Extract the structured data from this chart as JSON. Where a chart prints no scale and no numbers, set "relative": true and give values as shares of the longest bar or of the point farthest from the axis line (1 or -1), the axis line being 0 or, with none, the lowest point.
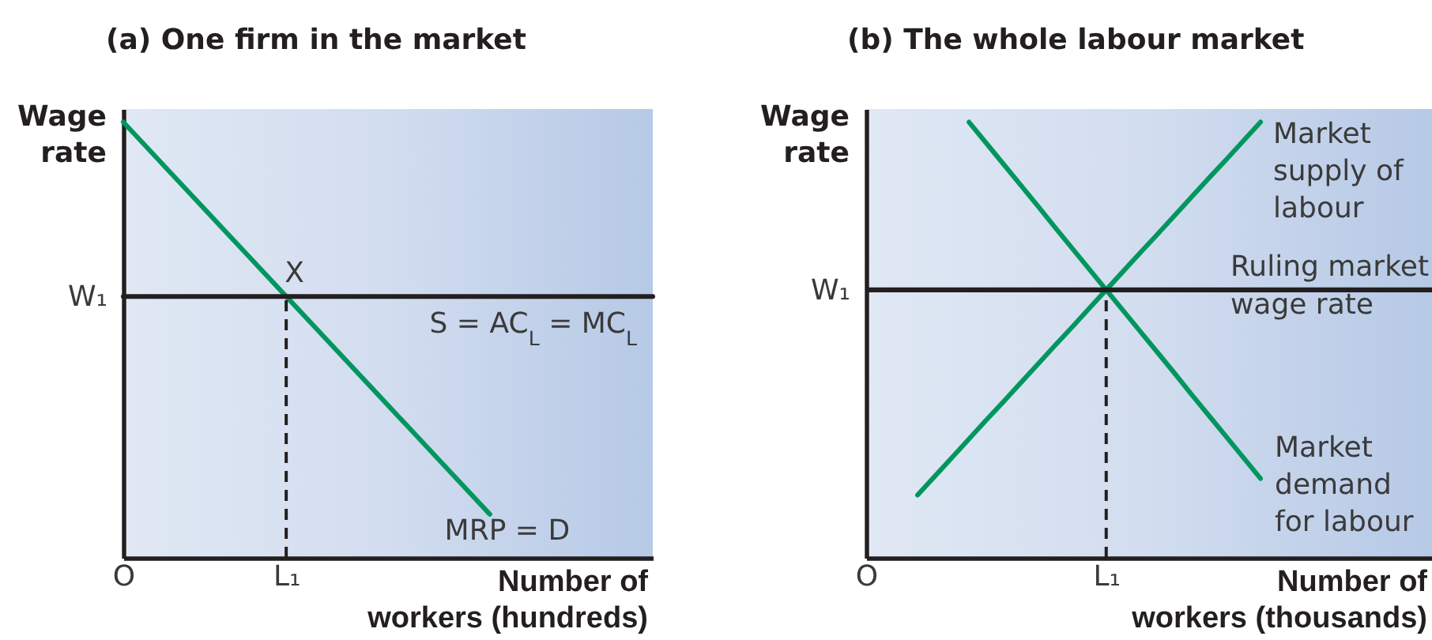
{
  "chart_data": [
    {
      "type": "line",
      "title": "(a) One firm in the market",
      "xlabel": "Number of workers (hundreds)",
      "ylabel": "Wage rate",
      "relative": true,
      "categories": [
        "O",
        null,
        null,
        null,
        "L₁",
        null,
        null,
        null,
        null,
        null,
        null,
        null,
        null,
        null
      ],
      "series": [
        {
          "name": "MRP = D",
          "color": "#00965e",
          "values": [
            1,
            0.9,
            0.8,
            0.7,
            0.6,
            0.5,
            0.4,
            0.3,
            0.2,
            0.1,
            null,
            null,
            null,
            null
          ]
        },
        {
          "name": "S = AC$_{L}$ = MC$_{L}$",
          "color": "#231f20",
          "values": [
            0.6,
            0.6,
            0.6,
            0.6,
            0.6,
            0.6,
            0.6,
            0.6,
            0.6,
            0.6,
            0.6,
            0.6,
            0.6,
            0.6
          ]
        },
        {
          "color": "#231f20",
          "line_style": "dashed",
          "x": [
            "L₁",
            "L₁"
          ],
          "values": [
            0,
            0.6
          ]
        }
      ],
      "annotations": [
        "W₁",
        {
          "text": "X",
          "x": "L₁",
          "y": 0.6
        }
      ]
    },
    {
      "type": "line",
      "title": "(b) The whole labour market",
      "xlabel": "Number of workers (thousands)",
      "ylabel": "Wage rate",
      "relative": true,
      "categories": [
        "O",
        null,
        null,
        null,
        null,
        null,
        null,
        null,
        null,
        null,
        null,
        null,
        null,
        null,
        "L₁",
        null,
        null,
        null,
        null,
        null,
        null,
        null,
        null,
        null,
        null,
        null,
        null,
        null,
        null,
        null,
        null,
        null,
        null,
        null
      ],
      "series": [
        {
          "name": "Market supply of labour",
          "color": "#00965e",
          "values": [
            null,
            null,
            null,
            0.144,
            0.187,
            0.23,
            0.273,
            0.316,
            0.358,
            0.401,
            0.444,
            0.487,
            0.529,
            0.572,
            0.615,
            0.658,
            0.701,
            0.743,
            0.786,
            0.829,
            0.872,
            0.914,
            0.957,
            1,
            null,
            null,
            null,
            null,
            null,
            null,
            null,
            null,
            null,
            null
          ]
        },
        {
          "name": "Market demand for labour",
          "color": "#00965e",
          "values": [
            null,
            null,
            null,
            null,
            null,
            null,
            1,
            0.952,
            0.904,
            0.856,
            0.808,
            0.759,
            0.711,
            0.663,
            0.615,
            0.567,
            0.519,
            0.471,
            0.423,
            0.374,
            0.326,
            0.278,
            0.23,
            0.182,
            null,
            null,
            null,
            null,
            null,
            null,
            null,
            null,
            null,
            null
          ]
        },
        {
          "color": "#231f20",
          "line_style": "dashed",
          "x": [
            "L₁",
            "L₁"
          ],
          "values": [
            0,
            0.615
          ]
        }
      ],
      "ref_lines": [
        {
          "axis": "y",
          "value": 0.615,
          "label": "Ruling market wage rate",
          "color": "#231f20"
        }
      ],
      "annotations": [
        "W₁"
      ]
    }
  ]
}
